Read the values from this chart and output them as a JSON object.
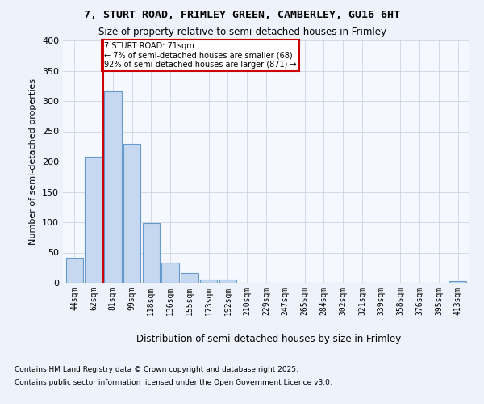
{
  "title1": "7, STURT ROAD, FRIMLEY GREEN, CAMBERLEY, GU16 6HT",
  "title2": "Size of property relative to semi-detached houses in Frimley",
  "xlabel": "Distribution of semi-detached houses by size in Frimley",
  "ylabel": "Number of semi-detached properties",
  "categories": [
    "44sqm",
    "62sqm",
    "81sqm",
    "99sqm",
    "118sqm",
    "136sqm",
    "155sqm",
    "173sqm",
    "192sqm",
    "210sqm",
    "229sqm",
    "247sqm",
    "265sqm",
    "284sqm",
    "302sqm",
    "321sqm",
    "339sqm",
    "358sqm",
    "376sqm",
    "395sqm",
    "413sqm"
  ],
  "values": [
    41,
    208,
    316,
    230,
    99,
    34,
    16,
    5,
    5,
    0,
    0,
    0,
    0,
    0,
    0,
    0,
    0,
    0,
    0,
    0,
    3
  ],
  "bar_color": "#c5d8f0",
  "bar_edge_color": "#6699cc",
  "redline_x": 1.5,
  "annotation_title": "7 STURT ROAD: 71sqm",
  "annotation_line1": "← 7% of semi-detached houses are smaller (68)",
  "annotation_line2": "92% of semi-detached houses are larger (871) →",
  "annotation_box_color": "#ffffff",
  "annotation_box_edge": "#cc0000",
  "redline_color": "#cc0000",
  "footnote1": "Contains HM Land Registry data © Crown copyright and database right 2025.",
  "footnote2": "Contains public sector information licensed under the Open Government Licence v3.0.",
  "bg_color": "#eef2fa",
  "plot_bg_color": "#f5f8ff",
  "ylim": [
    0,
    400
  ],
  "yticks": [
    0,
    50,
    100,
    150,
    200,
    250,
    300,
    350,
    400
  ]
}
